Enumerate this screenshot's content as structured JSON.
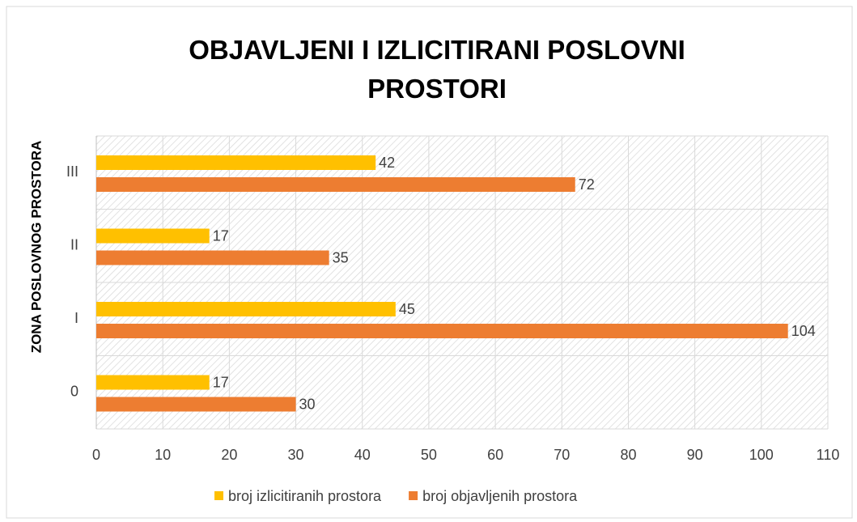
{
  "chart_data": {
    "type": "bar",
    "orientation": "horizontal",
    "title": "OBJAVLJENI I IZLICITIRANI POSLOVNI PROSTORI",
    "y_axis_label": "ZONA POSLOVNOG PROSTORA",
    "categories": [
      "0",
      "I",
      "II",
      "III"
    ],
    "series": [
      {
        "name": "broj izlicitiranih prostora",
        "color": "#ffc000",
        "values": [
          17,
          45,
          17,
          42
        ]
      },
      {
        "name": "broj objavljenih prostora",
        "color": "#ed7d31",
        "values": [
          30,
          104,
          35,
          72
        ]
      }
    ],
    "xlim": [
      0,
      110
    ],
    "xticks": [
      0,
      10,
      20,
      30,
      40,
      50,
      60,
      70,
      80,
      90,
      100,
      110
    ],
    "grid": true,
    "legend": "bottom"
  }
}
